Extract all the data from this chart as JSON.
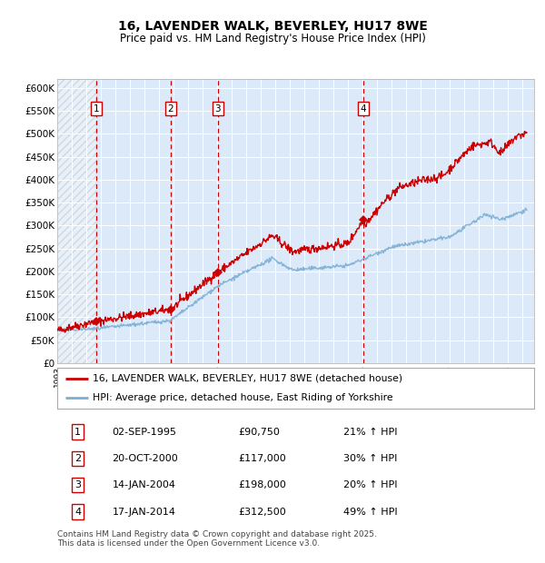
{
  "title1": "16, LAVENDER WALK, BEVERLEY, HU17 8WE",
  "title2": "Price paid vs. HM Land Registry's House Price Index (HPI)",
  "xlim_start": 1993.0,
  "xlim_end": 2025.8,
  "ylim_min": 0,
  "ylim_max": 620000,
  "yticks": [
    0,
    50000,
    100000,
    150000,
    200000,
    250000,
    300000,
    350000,
    400000,
    450000,
    500000,
    550000,
    600000
  ],
  "ytick_labels": [
    "£0",
    "£50K",
    "£100K",
    "£150K",
    "£200K",
    "£250K",
    "£300K",
    "£350K",
    "£400K",
    "£450K",
    "£500K",
    "£550K",
    "£600K"
  ],
  "bg_color": "#dce9f8",
  "hatch_end_year": 1995.7,
  "sale_dates": [
    1995.67,
    2000.8,
    2004.04,
    2014.05
  ],
  "sale_prices": [
    90750,
    117000,
    198000,
    312500
  ],
  "sale_labels": [
    "1",
    "2",
    "3",
    "4"
  ],
  "red_line_color": "#cc0000",
  "blue_line_color": "#7bafd4",
  "marker_color": "#cc0000",
  "vline_color": "#cc0000",
  "legend_red_label": "16, LAVENDER WALK, BEVERLEY, HU17 8WE (detached house)",
  "legend_blue_label": "HPI: Average price, detached house, East Riding of Yorkshire",
  "table_rows": [
    [
      "1",
      "02-SEP-1995",
      "£90,750",
      "21% ↑ HPI"
    ],
    [
      "2",
      "20-OCT-2000",
      "£117,000",
      "30% ↑ HPI"
    ],
    [
      "3",
      "14-JAN-2004",
      "£198,000",
      "20% ↑ HPI"
    ],
    [
      "4",
      "17-JAN-2014",
      "£312,500",
      "49% ↑ HPI"
    ]
  ],
  "footer": "Contains HM Land Registry data © Crown copyright and database right 2025.\nThis data is licensed under the Open Government Licence v3.0."
}
